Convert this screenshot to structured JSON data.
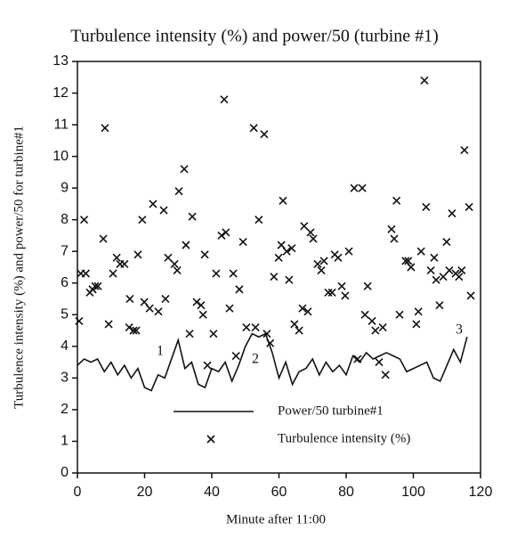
{
  "chart_data": {
    "type": "scatter",
    "title": "Turbulence intensity (%) and power/50 (turbine #1)",
    "x_label": "Minute after 11:00",
    "y_label": "Turbulence intensity (%) and power/50 for turbine#1",
    "xlim": [
      0,
      120
    ],
    "xticks": [
      0,
      20,
      40,
      60,
      80,
      100,
      120
    ],
    "ylim": [
      0,
      13
    ],
    "yticks": [
      0,
      1,
      2,
      3,
      4,
      5,
      6,
      7,
      8,
      9,
      10,
      11,
      12,
      13
    ],
    "legend": "lower center",
    "annotations": [
      "1",
      "2",
      "3"
    ],
    "series": [
      {
        "name": "Power/50 turbine#1",
        "type": "line",
        "color": "#111",
        "x": [
          0,
          2,
          4,
          6,
          8,
          10,
          12,
          14,
          16,
          18,
          20,
          22,
          24,
          26,
          28,
          30,
          32,
          34,
          36,
          38,
          40,
          42,
          44,
          46,
          48,
          50,
          52,
          54,
          56,
          58,
          60,
          62,
          64,
          66,
          68,
          70,
          72,
          74,
          76,
          78,
          80,
          82,
          84,
          86,
          88,
          90,
          92,
          94,
          96,
          98,
          100,
          102,
          104,
          106,
          108,
          110,
          112,
          114,
          116
        ],
        "values": [
          3.4,
          3.6,
          3.5,
          3.6,
          3.2,
          3.5,
          3.1,
          3.4,
          3.0,
          3.3,
          2.7,
          2.6,
          3.1,
          3.0,
          3.6,
          4.2,
          3.3,
          3.5,
          2.8,
          2.7,
          3.3,
          3.2,
          3.5,
          2.9,
          3.4,
          4.0,
          4.4,
          4.3,
          4.4,
          3.8,
          3.0,
          3.5,
          2.8,
          3.2,
          3.3,
          3.6,
          3.1,
          3.5,
          3.2,
          3.4,
          3.1,
          3.7,
          3.5,
          3.8,
          3.6,
          3.7,
          3.8,
          3.7,
          3.6,
          3.2,
          3.3,
          3.4,
          3.5,
          3.0,
          2.9,
          3.4,
          3.9,
          3.5,
          4.3
        ]
      },
      {
        "name": "Turbulence intensity (%)",
        "type": "scatter",
        "color": "#111",
        "x": [
          0.5,
          1,
          2,
          2.5,
          3.7,
          4.5,
          5.3,
          6.1,
          7.7,
          8.2,
          9.3,
          10.6,
          11.7,
          12.7,
          14,
          15.4,
          15.6,
          16.7,
          17.5,
          18,
          19.3,
          19.9,
          21.5,
          22.5,
          24.1,
          25.7,
          26.2,
          27,
          28.9,
          29.7,
          30.2,
          31.8,
          32.3,
          33.4,
          34.2,
          35.5,
          36.8,
          37.4,
          37.9,
          38.7,
          40.5,
          41.3,
          42.9,
          43.7,
          44.2,
          45.3,
          46.4,
          47.2,
          48.2,
          49.3,
          50.3,
          52.5,
          53,
          54,
          55.6,
          56.4,
          57.4,
          58.5,
          59.9,
          60.7,
          61.2,
          62.3,
          63,
          63.8,
          64.6,
          66,
          67,
          67.5,
          68.6,
          69.4,
          70.2,
          71.5,
          72.6,
          73.4,
          74.7,
          75.8,
          76.6,
          77.6,
          78.7,
          79.7,
          80.8,
          82.4,
          83.4,
          84.8,
          85.6,
          86.4,
          87.7,
          88.7,
          89.8,
          90.9,
          91.7,
          93.5,
          94.3,
          95,
          95.9,
          97.7,
          98.5,
          99.3,
          100.9,
          101.5,
          102.3,
          103.3,
          103.8,
          105.2,
          106.2,
          106.8,
          107.8,
          108.9,
          109.9,
          110.7,
          111.5,
          112.6,
          113.6,
          114.4,
          115.2,
          116.6,
          117.1
        ],
        "values": [
          4.8,
          6.3,
          8.0,
          6.3,
          5.7,
          5.8,
          5.9,
          5.9,
          7.4,
          10.9,
          4.7,
          6.3,
          6.8,
          6.6,
          6.6,
          4.6,
          5.5,
          4.5,
          4.5,
          6.9,
          8.0,
          5.4,
          5.2,
          8.5,
          5.1,
          8.3,
          5.5,
          6.8,
          6.6,
          6.4,
          8.9,
          9.6,
          7.2,
          4.4,
          8.1,
          5.4,
          5.3,
          5.0,
          6.9,
          3.4,
          4.4,
          6.3,
          7.5,
          11.8,
          7.6,
          5.2,
          6.3,
          3.7,
          5.8,
          7.3,
          4.6,
          10.9,
          4.6,
          8.0,
          10.7,
          4.4,
          4.1,
          6.2,
          6.8,
          7.2,
          8.6,
          7.0,
          6.1,
          7.1,
          4.7,
          4.5,
          5.2,
          7.8,
          5.1,
          7.6,
          7.4,
          6.6,
          6.4,
          6.7,
          5.7,
          5.7,
          6.9,
          6.8,
          5.9,
          5.6,
          7.0,
          9.0,
          3.6,
          9.0,
          5.0,
          5.9,
          4.8,
          4.5,
          3.5,
          4.6,
          3.1,
          7.7,
          7.4,
          8.6,
          5.0,
          6.7,
          6.7,
          6.5,
          4.7,
          5.1,
          7.0,
          12.4,
          8.4,
          6.4,
          6.8,
          6.1,
          5.3,
          6.2,
          7.3,
          6.4,
          8.2,
          6.3,
          6.2,
          6.4,
          10.2,
          8.4,
          5.6
        ]
      }
    ]
  }
}
